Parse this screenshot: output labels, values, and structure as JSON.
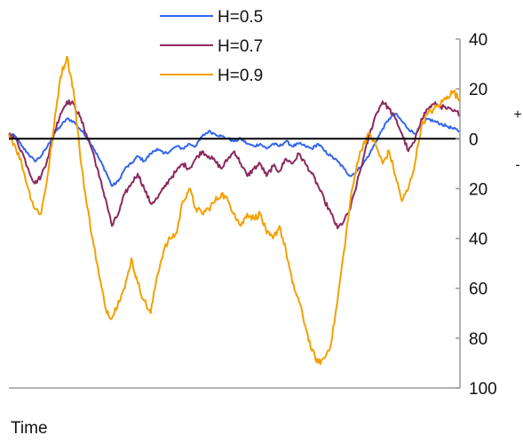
{
  "chart_data": {
    "type": "line",
    "title": "",
    "xlabel": "Time",
    "ylabel": "",
    "ylim": [
      -100,
      40
    ],
    "y_ticks": [
      40,
      20,
      0,
      -20,
      -40,
      -60,
      -80,
      -100
    ],
    "y_tick_labels": [
      "40",
      "20",
      "0",
      "20",
      "40",
      "60",
      "80",
      "100"
    ],
    "y_axis_side": "right",
    "sign_labels": {
      "positive": "+",
      "negative": "-"
    },
    "zero_line": true,
    "grid": false,
    "legend_position": "top-left",
    "x": [
      0,
      3,
      6,
      9,
      12,
      15,
      18,
      21,
      24,
      27,
      30,
      33,
      36,
      39,
      42,
      45,
      48,
      51,
      54,
      57,
      60,
      63,
      66,
      69,
      72,
      75,
      78,
      81,
      84,
      87,
      90,
      93,
      96,
      99,
      102,
      105,
      108,
      111,
      114,
      117,
      120,
      123,
      126,
      129,
      132,
      135,
      138,
      141,
      144,
      147,
      150,
      153,
      156,
      159,
      162,
      165,
      168,
      171,
      174,
      177,
      180,
      183,
      186,
      189,
      192,
      195,
      198,
      201,
      204,
      207,
      210
    ],
    "series": [
      {
        "name": "H=0.5",
        "color": "#3366ee",
        "values": [
          2,
          1,
          -3,
          -6,
          -9,
          -7,
          -3,
          2,
          5,
          8,
          7,
          4,
          1,
          -3,
          -8,
          -13,
          -19,
          -17,
          -12,
          -10,
          -7,
          -9,
          -6,
          -4,
          -6,
          -5,
          -3,
          -4,
          -2,
          -3,
          1,
          3,
          2,
          1,
          0,
          -1,
          0,
          -2,
          -3,
          -2,
          -4,
          -2,
          -3,
          -1,
          -3,
          -2,
          -3,
          -4,
          -2,
          -5,
          -7,
          -9,
          -12,
          -15,
          -13,
          -10,
          -6,
          -1,
          4,
          8,
          10,
          7,
          4,
          2,
          5,
          8,
          7,
          6,
          5,
          4,
          3
        ]
      },
      {
        "name": "H=0.7",
        "color": "#8b2a5e",
        "values": [
          2,
          0,
          -5,
          -12,
          -18,
          -15,
          -8,
          2,
          10,
          15,
          14,
          9,
          2,
          -5,
          -15,
          -24,
          -35,
          -30,
          -22,
          -18,
          -14,
          -20,
          -26,
          -24,
          -20,
          -16,
          -13,
          -10,
          -12,
          -8,
          -5,
          -7,
          -9,
          -12,
          -8,
          -5,
          -10,
          -15,
          -12,
          -10,
          -15,
          -11,
          -13,
          -8,
          -10,
          -6,
          -10,
          -14,
          -19,
          -25,
          -30,
          -36,
          -33,
          -28,
          -18,
          -8,
          2,
          10,
          15,
          12,
          8,
          2,
          -5,
          -1,
          8,
          12,
          14,
          13,
          12,
          11,
          10
        ]
      },
      {
        "name": "H=0.9",
        "color": "#f5a000",
        "values": [
          2,
          -3,
          -10,
          -20,
          -28,
          -30,
          -15,
          5,
          25,
          33,
          20,
          -5,
          -25,
          -40,
          -55,
          -68,
          -72,
          -65,
          -60,
          -48,
          -58,
          -65,
          -70,
          -55,
          -45,
          -40,
          -38,
          -25,
          -20,
          -28,
          -30,
          -28,
          -25,
          -22,
          -25,
          -30,
          -35,
          -30,
          -32,
          -30,
          -38,
          -40,
          -35,
          -45,
          -58,
          -65,
          -75,
          -85,
          -90,
          -88,
          -82,
          -65,
          -45,
          -25,
          -10,
          -2,
          2,
          -3,
          -10,
          -5,
          -15,
          -25,
          -20,
          -10,
          5,
          10,
          12,
          14,
          17,
          19,
          15
        ]
      }
    ]
  }
}
